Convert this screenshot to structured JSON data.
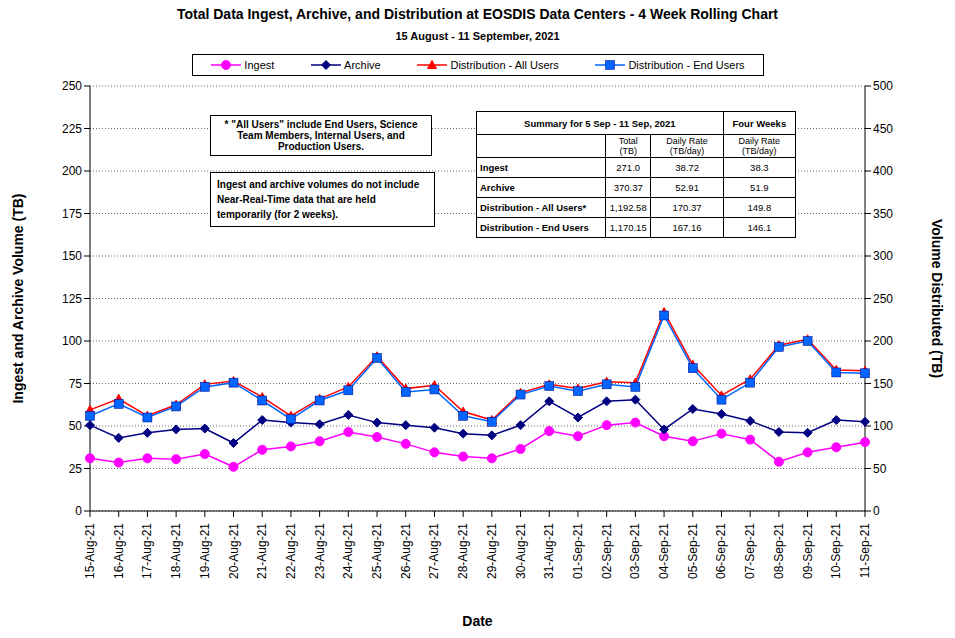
{
  "chart_data": {
    "type": "line",
    "title": "Total Data Ingest, Archive, and  Distribution at EOSDIS Data Centers - 4 Week Rolling Chart",
    "subtitle": "15 August  - 11 September, 2021",
    "x_label": "Date",
    "y_label": "Ingest and Archive Volume (TB)",
    "y2_label": "Volume Distributed (TB)",
    "categories": [
      "15-Aug-21",
      "16-Aug-21",
      "17-Aug-21",
      "18-Aug-21",
      "19-Aug-21",
      "20-Aug-21",
      "21-Aug-21",
      "22-Aug-21",
      "23-Aug-21",
      "24-Aug-21",
      "25-Aug-21",
      "26-Aug-21",
      "27-Aug-21",
      "28-Aug-21",
      "29-Aug-21",
      "30-Aug-21",
      "31-Aug-21",
      "01-Sep-21",
      "02-Sep-21",
      "03-Sep-21",
      "04-Sep-21",
      "05-Sep-21",
      "06-Sep-21",
      "07-Sep-21",
      "08-Sep-21",
      "09-Sep-21",
      "10-Sep-21",
      "11-Sep-21"
    ],
    "series": [
      {
        "name": "Ingest",
        "color": "#ff00ff",
        "marker": "circle",
        "values": [
          31,
          28.5,
          31,
          30.5,
          33.5,
          26,
          36,
          38,
          41,
          46.5,
          43.5,
          39.5,
          34.5,
          32,
          31,
          36.5,
          47,
          44,
          50.5,
          52,
          44,
          41,
          45.5,
          42,
          29,
          34.5,
          37.5,
          40.5
        ]
      },
      {
        "name": "Archive",
        "color": "#000080",
        "marker": "diamond",
        "values": [
          50.5,
          43,
          46,
          48,
          48.5,
          40,
          53.5,
          52,
          51,
          56.5,
          52,
          50.5,
          49,
          45.5,
          44.5,
          50.5,
          64.5,
          55,
          64.5,
          65.5,
          48,
          60,
          57,
          53,
          46.5,
          46,
          53.5,
          52.5
        ]
      },
      {
        "name": "Distribution - All Users",
        "color": "#ff0000",
        "marker": "triangle",
        "axis": "y2",
        "values": [
          119,
          132,
          112,
          125,
          149,
          153,
          134,
          112,
          132,
          146,
          182,
          144,
          148,
          117,
          107,
          139,
          149,
          144,
          152,
          151,
          234,
          172,
          136,
          155,
          195,
          202,
          166,
          165
        ]
      },
      {
        "name": "Distribution - End Users",
        "color": "#0066ff",
        "marker": "square",
        "axis": "y2",
        "values": [
          112,
          126,
          110,
          123,
          146,
          151,
          130,
          108,
          130,
          142,
          180,
          140,
          143,
          112,
          105,
          137,
          147,
          141,
          149,
          146,
          230,
          168,
          131,
          151,
          193,
          200,
          163,
          162
        ]
      }
    ],
    "ylim": [
      0,
      250
    ],
    "yticks": [
      0,
      25,
      50,
      75,
      100,
      125,
      150,
      175,
      200,
      225,
      250
    ],
    "y2lim": [
      0,
      500
    ],
    "y2ticks": [
      0,
      50,
      100,
      150,
      200,
      250,
      300,
      350,
      400,
      450,
      500
    ],
    "grid": true,
    "annotations": [
      "* \"All Users\" include End Users, Science Team Members, Internal Users, and Production Users.",
      "Ingest and archive volumes do not include Near-Real-Time data that are held temporarily (for 2 weeks)."
    ],
    "summary_table": {
      "title": "Summary for 5 Sep  - 11 Sep, 2021",
      "group_header": "Four Weeks",
      "columns": [
        "Total (TB)",
        "Daily Rate (TB/day)",
        "Daily Rate (TB/day)"
      ],
      "rows": [
        {
          "label": "Ingest",
          "values": [
            "271.0",
            "38.72",
            "38.3"
          ]
        },
        {
          "label": "Archive",
          "values": [
            "370.37",
            "52.91",
            "51.9"
          ]
        },
        {
          "label": "Distribution - All Users*",
          "values": [
            "1,192.58",
            "170.37",
            "149.8"
          ]
        },
        {
          "label": "Distribution - End Users",
          "values": [
            "1,170.15",
            "167.16",
            "146.1"
          ]
        }
      ]
    }
  }
}
